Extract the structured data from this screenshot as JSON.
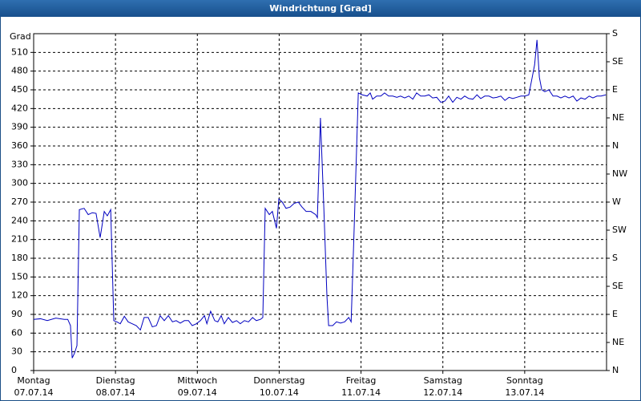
{
  "chart_data": {
    "type": "line",
    "title": "Windrichtung [Grad]",
    "y_label": "Grad",
    "color": "#0000c0",
    "grid": true,
    "xlim": [
      0,
      168
    ],
    "xticks": [
      {
        "value": 0,
        "label": "Montag"
      },
      {
        "value": 24,
        "label": "Dienstag"
      },
      {
        "value": 48,
        "label": "Mittwoch"
      },
      {
        "value": 72,
        "label": "Donnerstag"
      },
      {
        "value": 96,
        "label": "Freitag"
      },
      {
        "value": 120,
        "label": "Samstag"
      },
      {
        "value": 144,
        "label": "Sonntag"
      }
    ],
    "xtick_dates": [
      "07.07.14",
      "08.07.14",
      "09.07.14",
      "10.07.14",
      "11.07.14",
      "12.07.14",
      "13.07.14"
    ],
    "ylim": [
      0,
      540
    ],
    "yticks": [
      0,
      30,
      60,
      90,
      120,
      150,
      180,
      210,
      240,
      270,
      300,
      330,
      360,
      390,
      420,
      450,
      480,
      510
    ],
    "y2lim": [
      0,
      540
    ],
    "y2ticks": [
      {
        "value": 0,
        "label": "N"
      },
      {
        "value": 45,
        "label": "NE"
      },
      {
        "value": 90,
        "label": "E"
      },
      {
        "value": 135,
        "label": "SE"
      },
      {
        "value": 180,
        "label": "S"
      },
      {
        "value": 225,
        "label": "SW"
      },
      {
        "value": 270,
        "label": "W"
      },
      {
        "value": 315,
        "label": "NW"
      },
      {
        "value": 360,
        "label": "N"
      },
      {
        "value": 405,
        "label": "NE"
      },
      {
        "value": 450,
        "label": "E"
      },
      {
        "value": 495,
        "label": "SE"
      },
      {
        "value": 540,
        "label": "S"
      }
    ],
    "x": [
      0,
      2,
      4,
      6.5,
      9,
      10,
      10.8,
      11.3,
      12,
      12.7,
      13.4,
      14.8,
      16,
      17.2,
      18.3,
      19.5,
      20.7,
      21.6,
      22.6,
      23.5,
      24.4,
      25.4,
      26.6,
      27.7,
      28.9,
      30.1,
      31.3,
      32.4,
      33.6,
      34.8,
      36,
      37.1,
      38.3,
      39.5,
      40.7,
      41.8,
      43,
      44.2,
      45.4,
      46.5,
      47.7,
      48.9,
      50.1,
      50.8,
      51.9,
      53.1,
      54,
      55,
      55.9,
      57.1,
      58.3,
      59.5,
      60.6,
      61.8,
      63,
      64.2,
      65.3,
      66.5,
      67.2,
      67.9,
      69.1,
      70,
      71.2,
      71.9,
      72.9,
      74,
      75.2,
      76.4,
      77.6,
      78.7,
      79.9,
      81.3,
      82.7,
      83.2,
      84.1,
      85.1,
      86,
      86.5,
      87.7,
      88.8,
      90,
      91.2,
      92.4,
      93.1,
      94,
      95.2,
      96.4,
      97.8,
      98.7,
      99.4,
      100.6,
      101.8,
      102.9,
      104.1,
      105.3,
      106.5,
      107.6,
      108.8,
      110,
      111.2,
      112.3,
      113.5,
      114.7,
      115.9,
      117,
      118.2,
      119.4,
      120.6,
      121.7,
      122.9,
      124.1,
      125.3,
      126.4,
      127.6,
      128.8,
      130,
      131.1,
      132.3,
      133.5,
      134.7,
      135.8,
      137,
      138.2,
      139.4,
      140.5,
      141.7,
      142.9,
      144.1,
      145.2,
      146.2,
      146.9,
      147.6,
      148.3,
      149,
      149.9,
      151.1,
      152.3,
      153.5,
      154.6,
      155.8,
      157,
      158.2,
      159.3,
      160.5,
      161.7,
      162.9,
      164,
      165.2,
      166.4,
      167.8
    ],
    "values": [
      82,
      83,
      80,
      84,
      82,
      82,
      72,
      20,
      28,
      40,
      258,
      260,
      250,
      253,
      252,
      213,
      255,
      248,
      258,
      80,
      78,
      75,
      87,
      78,
      75,
      72,
      65,
      85,
      85,
      70,
      72,
      88,
      80,
      88,
      78,
      80,
      76,
      80,
      80,
      72,
      75,
      80,
      88,
      75,
      95,
      80,
      78,
      88,
      75,
      85,
      77,
      80,
      75,
      80,
      78,
      85,
      80,
      82,
      85,
      260,
      250,
      255,
      228,
      275,
      270,
      260,
      262,
      268,
      270,
      262,
      255,
      255,
      250,
      245,
      405,
      260,
      120,
      72,
      72,
      78,
      76,
      78,
      85,
      78,
      230,
      445,
      442,
      440,
      445,
      435,
      440,
      440,
      445,
      440,
      440,
      438,
      440,
      437,
      440,
      435,
      445,
      440,
      440,
      442,
      437,
      438,
      430,
      432,
      440,
      430,
      438,
      435,
      440,
      436,
      435,
      442,
      436,
      440,
      440,
      437,
      438,
      440,
      433,
      438,
      436,
      438,
      440,
      440,
      442,
      470,
      490,
      530,
      470,
      450,
      447,
      450,
      440,
      440,
      437,
      440,
      437,
      440,
      432,
      437,
      435,
      440,
      437,
      440,
      440,
      442
    ]
  }
}
